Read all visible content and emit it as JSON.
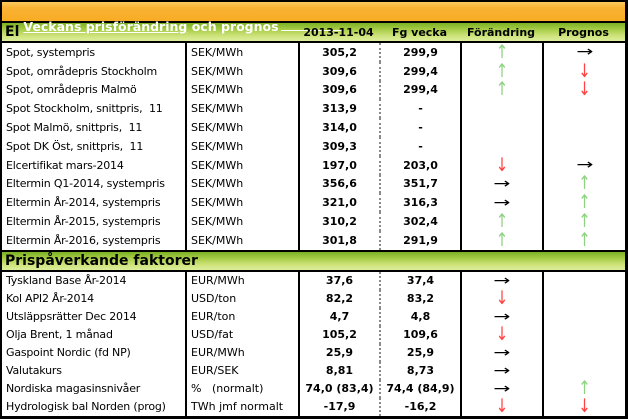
{
  "title": {
    "part1": "Veckans prisförändring",
    "part2": " och prognos"
  },
  "columns": {
    "date": "2013-11-04",
    "prev": "Fg vecka",
    "change": "Förändring",
    "forecast": "Prognos"
  },
  "arrows": {
    "up": "↑",
    "down": "↓",
    "flat": "→"
  },
  "colors": {
    "up_arrow": "#8fd284",
    "down_arrow": "#ff4343",
    "flat_arrow": "#000000",
    "header_orange": "#f9b233",
    "section_green": "#a6cc46"
  },
  "table": {
    "sections": [
      {
        "label": "El",
        "rows": [
          {
            "name": "Spot, systempris",
            "unit": "SEK/MWh",
            "current": "305,2",
            "previous": "299,9",
            "change": "up",
            "forecast": "flat"
          },
          {
            "name": "Spot, områdepris Stockholm",
            "unit": "SEK/MWh",
            "current": "309,6",
            "previous": "299,4",
            "change": "up",
            "forecast": "down"
          },
          {
            "name": "Spot, områdepris Malmö",
            "unit": "SEK/MWh",
            "current": "309,6",
            "previous": "299,4",
            "change": "up",
            "forecast": "down"
          },
          {
            "name": "Spot Stockholm, snittpris,  11",
            "unit": "SEK/MWh",
            "current": "313,9",
            "previous": "-",
            "change": "none",
            "forecast": "none"
          },
          {
            "name": "Spot Malmö, snittpris,  11",
            "unit": "SEK/MWh",
            "current": "314,0",
            "previous": "-",
            "change": "none",
            "forecast": "none"
          },
          {
            "name": "Spot DK Öst, snittpris,  11",
            "unit": "SEK/MWh",
            "current": "309,3",
            "previous": "-",
            "change": "none",
            "forecast": "none"
          },
          {
            "name": "Elcertifikat mars-2014",
            "unit": "SEK/MWh",
            "current": "197,0",
            "previous": "203,0",
            "change": "down",
            "forecast": "flat"
          },
          {
            "name": "Eltermin Q1-2014, systempris",
            "unit": "SEK/MWh",
            "current": "356,6",
            "previous": "351,7",
            "change": "flat",
            "forecast": "up"
          },
          {
            "name": "Eltermin År-2014, systempris",
            "unit": "SEK/MWh",
            "current": "321,0",
            "previous": "316,3",
            "change": "flat",
            "forecast": "up"
          },
          {
            "name": "Eltermin År-2015, systempris",
            "unit": "SEK/MWh",
            "current": "310,2",
            "previous": "302,4",
            "change": "up",
            "forecast": "up"
          },
          {
            "name": "Eltermin År-2016, systempris",
            "unit": "SEK/MWh",
            "current": "301,8",
            "previous": "291,9",
            "change": "up",
            "forecast": "up"
          }
        ]
      },
      {
        "label": "Prispåverkande faktorer",
        "rows": [
          {
            "name": "Tyskland Base År-2014",
            "unit": "EUR/MWh",
            "current": "37,6",
            "previous": "37,4",
            "change": "flat",
            "forecast": "none"
          },
          {
            "name": "Kol API2 År-2014",
            "unit": "USD/ton",
            "current": "82,2",
            "previous": "83,2",
            "change": "down",
            "forecast": "none"
          },
          {
            "name": "Utsläppsrätter Dec 2014",
            "unit": "EUR/ton",
            "current": "4,7",
            "previous": "4,8",
            "change": "flat",
            "forecast": "none"
          },
          {
            "name": "Olja Brent, 1 månad",
            "unit": "USD/fat",
            "current": "105,2",
            "previous": "109,6",
            "change": "down",
            "forecast": "none"
          },
          {
            "name": "Gaspoint Nordic (fd NP)",
            "unit": "EUR/MWh",
            "current": "25,9",
            "previous": "25,9",
            "change": "flat",
            "forecast": "none"
          },
          {
            "name": "Valutakurs",
            "unit": "EUR/SEK",
            "current": "8,81",
            "previous": "8,73",
            "change": "flat",
            "forecast": "none"
          },
          {
            "name": "Nordiska magasinsnivåer",
            "unit": "%   (normalt)",
            "current": "74,0 (83,4)",
            "previous": "74,4 (84,9)",
            "change": "flat",
            "forecast": "up"
          },
          {
            "name": "Hydrologisk bal Norden (prog)",
            "unit": "TWh jmf normalt",
            "current": "-17,9",
            "previous": "-16,2",
            "change": "down",
            "forecast": "down"
          }
        ]
      }
    ]
  }
}
